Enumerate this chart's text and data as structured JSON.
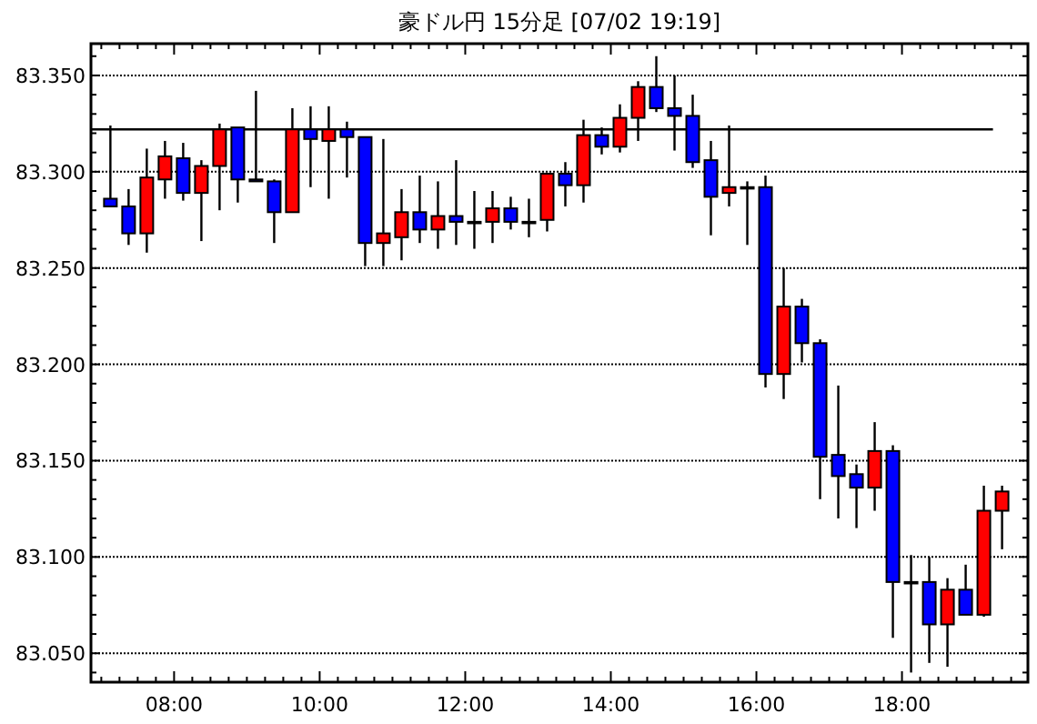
{
  "chart_data": {
    "type": "candlestick",
    "title": "豪ドル円 15分足 [07/02 19:19]",
    "x": [
      7.125,
      7.375,
      7.625,
      7.875,
      8.125,
      8.375,
      8.625,
      8.875,
      9.125,
      9.375,
      9.625,
      9.875,
      10.125,
      10.375,
      10.625,
      10.875,
      11.125,
      11.375,
      11.625,
      11.875,
      12.125,
      12.375,
      12.625,
      12.875,
      13.125,
      13.375,
      13.625,
      13.875,
      14.125,
      14.375,
      14.625,
      14.875,
      15.125,
      15.375,
      15.625,
      15.875,
      16.125,
      16.375,
      16.625,
      16.875,
      17.125,
      17.375,
      17.625,
      17.875,
      18.125,
      18.375,
      18.625,
      18.875,
      19.125,
      19.375
    ],
    "ohlc": [
      [
        83.286,
        83.324,
        83.282,
        83.282
      ],
      [
        83.282,
        83.291,
        83.262,
        83.268
      ],
      [
        83.268,
        83.312,
        83.258,
        83.297
      ],
      [
        83.296,
        83.316,
        83.286,
        83.308
      ],
      [
        83.307,
        83.315,
        83.285,
        83.289
      ],
      [
        83.289,
        83.306,
        83.264,
        83.303
      ],
      [
        83.303,
        83.325,
        83.28,
        83.322
      ],
      [
        83.323,
        83.323,
        83.284,
        83.296
      ],
      [
        83.296,
        83.342,
        83.295,
        83.295
      ],
      [
        83.295,
        83.296,
        83.263,
        83.279
      ],
      [
        83.279,
        83.333,
        83.279,
        83.322
      ],
      [
        83.322,
        83.334,
        83.292,
        83.317
      ],
      [
        83.316,
        83.334,
        83.286,
        83.322
      ],
      [
        83.322,
        83.326,
        83.297,
        83.318
      ],
      [
        83.318,
        83.318,
        83.251,
        83.263
      ],
      [
        83.263,
        83.317,
        83.251,
        83.268
      ],
      [
        83.266,
        83.291,
        83.254,
        83.279
      ],
      [
        83.279,
        83.298,
        83.263,
        83.27
      ],
      [
        83.27,
        83.295,
        83.26,
        83.277
      ],
      [
        83.277,
        83.306,
        83.262,
        83.274
      ],
      [
        83.274,
        83.29,
        83.26,
        83.274
      ],
      [
        83.274,
        83.29,
        83.263,
        83.281
      ],
      [
        83.281,
        83.287,
        83.27,
        83.274
      ],
      [
        83.274,
        83.286,
        83.266,
        83.274
      ],
      [
        83.275,
        83.299,
        83.269,
        83.299
      ],
      [
        83.299,
        83.305,
        83.282,
        83.293
      ],
      [
        83.293,
        83.327,
        83.284,
        83.319
      ],
      [
        83.319,
        83.323,
        83.309,
        83.313
      ],
      [
        83.313,
        83.335,
        83.31,
        83.328
      ],
      [
        83.328,
        83.347,
        83.316,
        83.344
      ],
      [
        83.344,
        83.36,
        83.331,
        83.333
      ],
      [
        83.333,
        83.35,
        83.311,
        83.329
      ],
      [
        83.329,
        83.34,
        83.302,
        83.305
      ],
      [
        83.306,
        83.316,
        83.267,
        83.287
      ],
      [
        83.289,
        83.324,
        83.282,
        83.292
      ],
      [
        83.292,
        83.295,
        83.262,
        83.292
      ],
      [
        83.292,
        83.298,
        83.188,
        83.195
      ],
      [
        83.195,
        83.25,
        83.182,
        83.23
      ],
      [
        83.23,
        83.234,
        83.201,
        83.211
      ],
      [
        83.211,
        83.213,
        83.13,
        83.152
      ],
      [
        83.153,
        83.189,
        83.12,
        83.142
      ],
      [
        83.143,
        83.148,
        83.115,
        83.136
      ],
      [
        83.136,
        83.17,
        83.124,
        83.155
      ],
      [
        83.155,
        83.158,
        83.058,
        83.087
      ],
      [
        83.087,
        83.101,
        83.04,
        83.087
      ],
      [
        83.087,
        83.1,
        83.045,
        83.065
      ],
      [
        83.065,
        83.089,
        83.043,
        83.083
      ],
      [
        83.083,
        83.096,
        83.07,
        83.07
      ],
      [
        83.07,
        83.137,
        83.069,
        83.124
      ],
      [
        83.124,
        83.137,
        83.104,
        83.134
      ]
    ],
    "colors": [
      "#0000ff",
      "#0000ff",
      "#ff0000",
      "#ff0000",
      "#0000ff",
      "#ff0000",
      "#ff0000",
      "#0000ff",
      "#0000ff",
      "#0000ff",
      "#ff0000",
      "#0000ff",
      "#ff0000",
      "#0000ff",
      "#0000ff",
      "#ff0000",
      "#ff0000",
      "#0000ff",
      "#ff0000",
      "#0000ff",
      "#0000ff",
      "#ff0000",
      "#0000ff",
      "#0000ff",
      "#ff0000",
      "#0000ff",
      "#ff0000",
      "#0000ff",
      "#ff0000",
      "#ff0000",
      "#0000ff",
      "#0000ff",
      "#0000ff",
      "#0000ff",
      "#ff0000",
      "#0000ff",
      "#0000ff",
      "#ff0000",
      "#0000ff",
      "#0000ff",
      "#0000ff",
      "#0000ff",
      "#ff0000",
      "#0000ff",
      "#0000ff",
      "#0000ff",
      "#ff0000",
      "#0000ff",
      "#ff0000",
      "#ff0000"
    ],
    "xlim": [
      6.858,
      19.73
    ],
    "xticks": [
      {
        "value": 7,
        "label": null
      },
      {
        "value": 7.25,
        "label": null
      },
      {
        "value": 7.5,
        "label": null
      },
      {
        "value": 7.75,
        "label": null
      },
      {
        "value": 8,
        "label": "08:00"
      },
      {
        "value": 8.25,
        "label": null
      },
      {
        "value": 8.5,
        "label": null
      },
      {
        "value": 8.75,
        "label": null
      },
      {
        "value": 9,
        "label": null
      },
      {
        "value": 9.25,
        "label": null
      },
      {
        "value": 9.5,
        "label": null
      },
      {
        "value": 9.75,
        "label": null
      },
      {
        "value": 10,
        "label": "10:00"
      },
      {
        "value": 10.25,
        "label": null
      },
      {
        "value": 10.5,
        "label": null
      },
      {
        "value": 10.75,
        "label": null
      },
      {
        "value": 11,
        "label": null
      },
      {
        "value": 11.25,
        "label": null
      },
      {
        "value": 11.5,
        "label": null
      },
      {
        "value": 11.75,
        "label": null
      },
      {
        "value": 12,
        "label": "12:00"
      },
      {
        "value": 12.25,
        "label": null
      },
      {
        "value": 12.5,
        "label": null
      },
      {
        "value": 12.75,
        "label": null
      },
      {
        "value": 13,
        "label": null
      },
      {
        "value": 13.25,
        "label": null
      },
      {
        "value": 13.5,
        "label": null
      },
      {
        "value": 13.75,
        "label": null
      },
      {
        "value": 14,
        "label": "14:00"
      },
      {
        "value": 14.25,
        "label": null
      },
      {
        "value": 14.5,
        "label": null
      },
      {
        "value": 14.75,
        "label": null
      },
      {
        "value": 15,
        "label": null
      },
      {
        "value": 15.25,
        "label": null
      },
      {
        "value": 15.5,
        "label": null
      },
      {
        "value": 15.75,
        "label": null
      },
      {
        "value": 16,
        "label": "16:00"
      },
      {
        "value": 16.25,
        "label": null
      },
      {
        "value": 16.5,
        "label": null
      },
      {
        "value": 16.75,
        "label": null
      },
      {
        "value": 17,
        "label": null
      },
      {
        "value": 17.25,
        "label": null
      },
      {
        "value": 17.5,
        "label": null
      },
      {
        "value": 17.75,
        "label": null
      },
      {
        "value": 18,
        "label": "18:00"
      },
      {
        "value": 18.25,
        "label": null
      },
      {
        "value": 18.5,
        "label": null
      },
      {
        "value": 18.75,
        "label": null
      },
      {
        "value": 19,
        "label": null
      },
      {
        "value": 19.25,
        "label": null
      },
      {
        "value": 19.5,
        "label": null
      }
    ],
    "ylim": [
      83.035,
      83.3665
    ],
    "yticks": [
      {
        "value": 83.04,
        "label": null
      },
      {
        "value": 83.05,
        "label": "83.050"
      },
      {
        "value": 83.06,
        "label": null
      },
      {
        "value": 83.07,
        "label": null
      },
      {
        "value": 83.08,
        "label": null
      },
      {
        "value": 83.09,
        "label": null
      },
      {
        "value": 83.1,
        "label": "83.100"
      },
      {
        "value": 83.11,
        "label": null
      },
      {
        "value": 83.12,
        "label": null
      },
      {
        "value": 83.13,
        "label": null
      },
      {
        "value": 83.14,
        "label": null
      },
      {
        "value": 83.15,
        "label": "83.150"
      },
      {
        "value": 83.16,
        "label": null
      },
      {
        "value": 83.17,
        "label": null
      },
      {
        "value": 83.18,
        "label": null
      },
      {
        "value": 83.19,
        "label": null
      },
      {
        "value": 83.2,
        "label": "83.200"
      },
      {
        "value": 83.21,
        "label": null
      },
      {
        "value": 83.22,
        "label": null
      },
      {
        "value": 83.23,
        "label": null
      },
      {
        "value": 83.24,
        "label": null
      },
      {
        "value": 83.25,
        "label": "83.250"
      },
      {
        "value": 83.26,
        "label": null
      },
      {
        "value": 83.27,
        "label": null
      },
      {
        "value": 83.28,
        "label": null
      },
      {
        "value": 83.29,
        "label": null
      },
      {
        "value": 83.3,
        "label": "83.300"
      },
      {
        "value": 83.31,
        "label": null
      },
      {
        "value": 83.32,
        "label": null
      },
      {
        "value": 83.33,
        "label": null
      },
      {
        "value": 83.34,
        "label": null
      },
      {
        "value": 83.35,
        "label": "83.350"
      },
      {
        "value": 83.36,
        "label": null
      }
    ],
    "grid": "y",
    "ref_lines": [
      {
        "axis": "y",
        "value": 83.322,
        "label": null,
        "color": "#000000",
        "line_style": "solid"
      }
    ]
  }
}
